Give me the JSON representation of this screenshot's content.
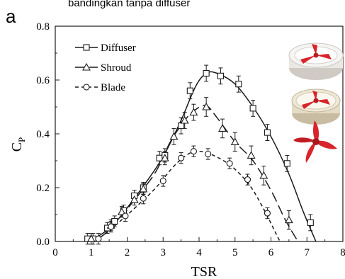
{
  "header_fragment": "bandingkan tanpa diffuser",
  "panel_label": "a",
  "colors": {
    "line": "#1a1a1a",
    "turbine_red": "#d8242b",
    "shroud_rim": "#e9e4d6",
    "diffuser_rim": "#e8e6e3"
  },
  "icons": [
    "diffuser-turbine-icon",
    "shroud-turbine-icon",
    "blade-rotor-icon"
  ],
  "chart_data": {
    "type": "line",
    "xlabel": "TSR",
    "ylabel": "C",
    "ylabel_sub": "P",
    "xlim": [
      0,
      8
    ],
    "ylim": [
      0,
      0.8
    ],
    "x_ticks": [
      "0",
      "1",
      "2",
      "3",
      "4",
      "5",
      "6",
      "7",
      "8"
    ],
    "y_ticks": [
      "0.0",
      "0.2",
      "0.4",
      "0.6",
      "0.8"
    ],
    "grid": false,
    "legend_position": "top-left",
    "series": [
      {
        "name": "Diffuser",
        "marker": "square",
        "dash": "solid",
        "points": [
          [
            0.9,
            0.01
          ],
          [
            1.05,
            0.01
          ],
          [
            1.45,
            0.05
          ],
          [
            1.65,
            0.075
          ],
          [
            1.9,
            0.115
          ],
          [
            2.2,
            0.17
          ],
          [
            2.45,
            0.2
          ],
          [
            2.9,
            0.31
          ],
          [
            3.05,
            0.32
          ],
          [
            3.5,
            0.43
          ],
          [
            3.75,
            0.56
          ],
          [
            4.2,
            0.625
          ],
          [
            4.6,
            0.615
          ],
          [
            5.1,
            0.585
          ],
          [
            5.5,
            0.495
          ],
          [
            5.9,
            0.405
          ],
          [
            6.45,
            0.29
          ],
          [
            7.1,
            0.07
          ]
        ],
        "errors": [
          0.02,
          0.02,
          0.02,
          0.02,
          0.02,
          0.02,
          0.02,
          0.025,
          0.025,
          0.03,
          0.03,
          0.03,
          0.03,
          0.03,
          0.03,
          0.03,
          0.03,
          0.03
        ],
        "curve": [
          [
            0.85,
            0.0
          ],
          [
            1.2,
            0.02
          ],
          [
            1.6,
            0.06
          ],
          [
            2.0,
            0.125
          ],
          [
            2.5,
            0.215
          ],
          [
            3.0,
            0.315
          ],
          [
            3.5,
            0.45
          ],
          [
            3.9,
            0.575
          ],
          [
            4.2,
            0.625
          ],
          [
            4.5,
            0.625
          ],
          [
            5.0,
            0.585
          ],
          [
            5.5,
            0.5
          ],
          [
            6.0,
            0.39
          ],
          [
            6.5,
            0.25
          ],
          [
            6.9,
            0.11
          ],
          [
            7.25,
            0.0
          ]
        ]
      },
      {
        "name": "Shroud",
        "marker": "triangle",
        "dash": "long-dash",
        "points": [
          [
            1.0,
            0.01
          ],
          [
            1.55,
            0.06
          ],
          [
            1.85,
            0.11
          ],
          [
            2.2,
            0.155
          ],
          [
            2.45,
            0.195
          ],
          [
            3.05,
            0.31
          ],
          [
            3.3,
            0.39
          ],
          [
            3.6,
            0.45
          ],
          [
            3.85,
            0.48
          ],
          [
            4.2,
            0.5
          ],
          [
            4.65,
            0.42
          ],
          [
            5.0,
            0.37
          ],
          [
            5.45,
            0.32
          ],
          [
            5.8,
            0.245
          ],
          [
            6.5,
            0.08
          ]
        ],
        "errors": [
          0.02,
          0.02,
          0.02,
          0.02,
          0.02,
          0.025,
          0.03,
          0.03,
          0.03,
          0.035,
          0.035,
          0.035,
          0.035,
          0.035,
          0.035
        ],
        "curve": [
          [
            0.85,
            0.0
          ],
          [
            1.3,
            0.02
          ],
          [
            1.8,
            0.09
          ],
          [
            2.3,
            0.17
          ],
          [
            2.8,
            0.26
          ],
          [
            3.2,
            0.37
          ],
          [
            3.6,
            0.45
          ],
          [
            3.9,
            0.49
          ],
          [
            4.2,
            0.505
          ],
          [
            4.5,
            0.46
          ],
          [
            5.0,
            0.37
          ],
          [
            5.5,
            0.3
          ],
          [
            6.0,
            0.19
          ],
          [
            6.4,
            0.08
          ],
          [
            6.75,
            0.0
          ]
        ]
      },
      {
        "name": "Blade",
        "marker": "circle",
        "dash": "short-dash",
        "points": [
          [
            1.2,
            0.01
          ],
          [
            1.55,
            0.055
          ],
          [
            1.95,
            0.095
          ],
          [
            2.45,
            0.16
          ],
          [
            3.0,
            0.225
          ],
          [
            3.5,
            0.31
          ],
          [
            3.85,
            0.335
          ],
          [
            4.25,
            0.325
          ],
          [
            4.85,
            0.29
          ],
          [
            5.35,
            0.23
          ],
          [
            5.9,
            0.105
          ]
        ],
        "errors": [
          0.02,
          0.02,
          0.02,
          0.02,
          0.02,
          0.02,
          0.02,
          0.02,
          0.02,
          0.02,
          0.02
        ],
        "curve": [
          [
            0.9,
            0.0
          ],
          [
            1.3,
            0.02
          ],
          [
            1.8,
            0.075
          ],
          [
            2.3,
            0.135
          ],
          [
            2.8,
            0.2
          ],
          [
            3.3,
            0.28
          ],
          [
            3.7,
            0.325
          ],
          [
            4.0,
            0.335
          ],
          [
            4.4,
            0.32
          ],
          [
            4.9,
            0.28
          ],
          [
            5.4,
            0.21
          ],
          [
            5.8,
            0.12
          ],
          [
            6.1,
            0.04
          ],
          [
            6.25,
            0.0
          ]
        ]
      }
    ]
  }
}
